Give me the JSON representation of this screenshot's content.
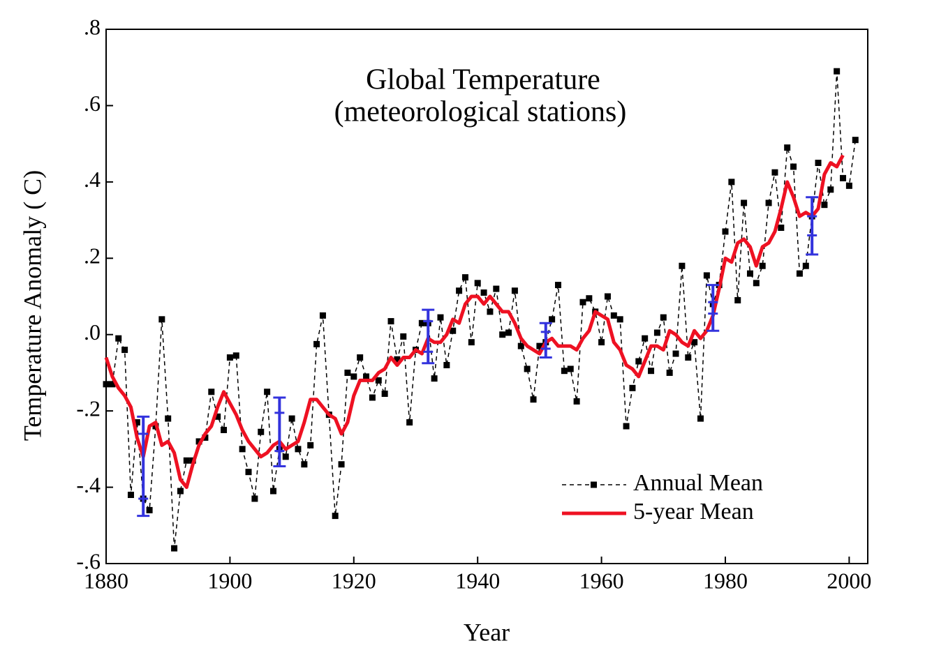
{
  "chart_data": {
    "type": "line",
    "title": "Global Temperature",
    "subtitle": "(meteorological stations)",
    "x_label": "Year",
    "y_label": "Temperature Anomaly (  C)",
    "x": [
      1880,
      1881,
      1882,
      1883,
      1884,
      1885,
      1886,
      1887,
      1888,
      1889,
      1890,
      1891,
      1892,
      1893,
      1894,
      1895,
      1896,
      1897,
      1898,
      1899,
      1900,
      1901,
      1902,
      1903,
      1904,
      1905,
      1906,
      1907,
      1908,
      1909,
      1910,
      1911,
      1912,
      1913,
      1914,
      1915,
      1916,
      1917,
      1918,
      1919,
      1920,
      1921,
      1922,
      1923,
      1924,
      1925,
      1926,
      1927,
      1928,
      1929,
      1930,
      1931,
      1932,
      1933,
      1934,
      1935,
      1936,
      1937,
      1938,
      1939,
      1940,
      1941,
      1942,
      1943,
      1944,
      1945,
      1946,
      1947,
      1948,
      1949,
      1950,
      1951,
      1952,
      1953,
      1954,
      1955,
      1956,
      1957,
      1958,
      1959,
      1960,
      1961,
      1962,
      1963,
      1964,
      1965,
      1966,
      1967,
      1968,
      1969,
      1970,
      1971,
      1972,
      1973,
      1974,
      1975,
      1976,
      1977,
      1978,
      1979,
      1980,
      1981,
      1982,
      1983,
      1984,
      1985,
      1986,
      1987,
      1988,
      1989,
      1990,
      1991,
      1992,
      1993,
      1994,
      1995,
      1996,
      1997,
      1998,
      1999,
      2000,
      2001
    ],
    "series": [
      {
        "name": "Annual Mean",
        "color": "#000000",
        "dashed": true,
        "markers": true,
        "values": [
          -0.13,
          -0.13,
          -0.01,
          -0.04,
          -0.42,
          -0.23,
          -0.43,
          -0.46,
          -0.24,
          0.04,
          -0.22,
          -0.56,
          -0.41,
          -0.33,
          -0.33,
          -0.28,
          -0.27,
          -0.15,
          -0.215,
          -0.25,
          -0.06,
          -0.055,
          -0.3,
          -0.36,
          -0.43,
          -0.255,
          -0.15,
          -0.41,
          -0.3,
          -0.32,
          -0.22,
          -0.3,
          -0.34,
          -0.29,
          -0.025,
          0.05,
          -0.21,
          -0.475,
          -0.34,
          -0.1,
          -0.11,
          -0.06,
          -0.11,
          -0.165,
          -0.12,
          -0.155,
          0.035,
          -0.065,
          -0.005,
          -0.23,
          -0.04,
          0.03,
          0.03,
          -0.115,
          0.045,
          -0.08,
          0.01,
          0.115,
          0.15,
          -0.02,
          0.135,
          0.11,
          0.06,
          0.12,
          0.0,
          0.005,
          0.115,
          -0.03,
          -0.09,
          -0.17,
          -0.03,
          -0.02,
          0.04,
          0.13,
          -0.095,
          -0.09,
          -0.175,
          0.085,
          0.095,
          0.06,
          -0.02,
          0.1,
          0.05,
          0.04,
          -0.24,
          -0.14,
          -0.07,
          -0.01,
          -0.095,
          0.005,
          0.045,
          -0.1,
          -0.05,
          0.18,
          -0.06,
          -0.02,
          -0.22,
          0.155,
          0.08,
          0.13,
          0.27,
          0.4,
          0.09,
          0.345,
          0.16,
          0.135,
          0.18,
          0.345,
          0.425,
          0.28,
          0.49,
          0.44,
          0.16,
          0.18,
          0.31,
          0.45,
          0.34,
          0.38,
          0.69,
          0.41,
          0.39,
          0.51
        ]
      },
      {
        "name": "5-year Mean",
        "color": "#ee1122",
        "dashed": false,
        "markers": false,
        "values": [
          -0.06,
          -0.11,
          -0.14,
          -0.16,
          -0.19,
          -0.27,
          -0.32,
          -0.24,
          -0.23,
          -0.29,
          -0.28,
          -0.31,
          -0.38,
          -0.4,
          -0.34,
          -0.29,
          -0.26,
          -0.24,
          -0.19,
          -0.15,
          -0.18,
          -0.21,
          -0.25,
          -0.28,
          -0.3,
          -0.32,
          -0.31,
          -0.29,
          -0.28,
          -0.3,
          -0.29,
          -0.28,
          -0.23,
          -0.17,
          -0.17,
          -0.19,
          -0.21,
          -0.22,
          -0.26,
          -0.23,
          -0.16,
          -0.12,
          -0.12,
          -0.12,
          -0.1,
          -0.09,
          -0.06,
          -0.08,
          -0.06,
          -0.06,
          -0.04,
          -0.05,
          -0.01,
          -0.02,
          -0.02,
          0.0,
          0.04,
          0.03,
          0.08,
          0.1,
          0.1,
          0.08,
          0.1,
          0.08,
          0.06,
          0.06,
          0.03,
          -0.01,
          -0.03,
          -0.04,
          -0.05,
          -0.02,
          -0.01,
          -0.03,
          -0.03,
          -0.03,
          -0.04,
          -0.01,
          0.01,
          0.06,
          0.05,
          0.04,
          -0.02,
          -0.04,
          -0.08,
          -0.09,
          -0.11,
          -0.07,
          -0.03,
          -0.03,
          -0.04,
          0.01,
          0.0,
          -0.02,
          -0.03,
          0.01,
          -0.01,
          0.01,
          0.05,
          0.12,
          0.2,
          0.19,
          0.24,
          0.25,
          0.23,
          0.18,
          0.23,
          0.24,
          0.27,
          0.33,
          0.4,
          0.36,
          0.31,
          0.32,
          0.31,
          0.33,
          0.42,
          0.45,
          0.44,
          0.47,
          null,
          null
        ]
      }
    ],
    "error_bars": {
      "color": "#3333dd",
      "x": [
        1886,
        1908,
        1932,
        1951,
        1978,
        1994
      ],
      "values": [
        -0.345,
        -0.255,
        -0.005,
        -0.015,
        0.07,
        0.285
      ],
      "errors": [
        0.13,
        0.09,
        0.07,
        0.045,
        0.06,
        0.075
      ],
      "inner_errors": [
        0.085,
        0.05,
        0.04,
        0.022,
        0.015,
        0.025
      ]
    },
    "xlim": [
      1880,
      2003
    ],
    "ylim": [
      -0.6,
      0.8
    ],
    "xticks": [
      1880,
      1900,
      1920,
      1940,
      1960,
      1980,
      2000
    ],
    "yticks": [
      {
        "value": 0.8,
        "label": ".8"
      },
      {
        "value": 0.6,
        "label": ".6"
      },
      {
        "value": 0.4,
        "label": ".4"
      },
      {
        "value": 0.2,
        "label": ".2"
      },
      {
        "value": 0.0,
        "label": ".0"
      },
      {
        "value": -0.2,
        "label": "-.2"
      },
      {
        "value": -0.4,
        "label": "-.4"
      },
      {
        "value": -0.6,
        "label": "-.6"
      }
    ],
    "legend": "lower right",
    "grid": false
  }
}
